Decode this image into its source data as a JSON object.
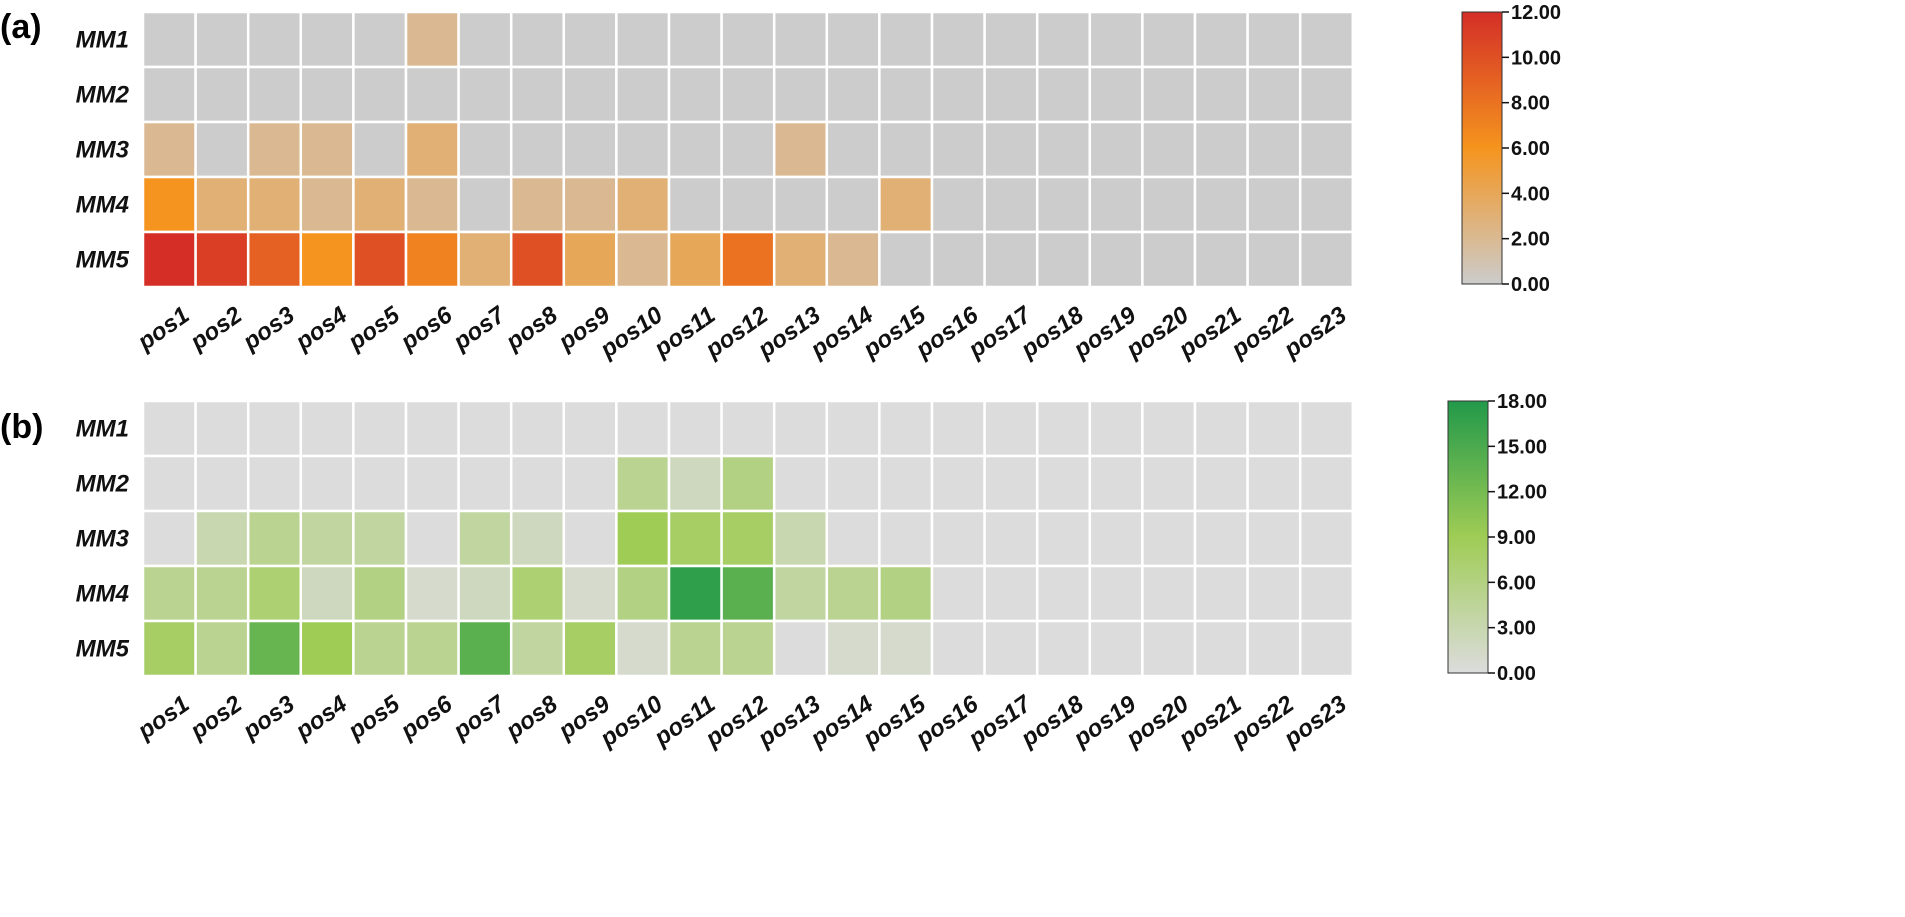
{
  "chart_data": [
    {
      "type": "heatmap",
      "panel_label": "(a)",
      "rows": [
        "MM1",
        "MM2",
        "MM3",
        "MM4",
        "MM5"
      ],
      "columns": [
        "pos1",
        "pos2",
        "pos3",
        "pos4",
        "pos5",
        "pos6",
        "pos7",
        "pos8",
        "pos9",
        "pos10",
        "pos11",
        "pos12",
        "pos13",
        "pos14",
        "pos15",
        "pos16",
        "pos17",
        "pos18",
        "pos19",
        "pos20",
        "pos21",
        "pos22",
        "pos23"
      ],
      "values": [
        [
          0,
          0,
          0,
          0,
          0,
          2,
          0,
          0,
          0,
          0,
          0,
          0,
          0,
          0,
          0,
          0,
          0,
          0,
          0,
          0,
          0,
          0,
          0
        ],
        [
          0,
          0,
          0,
          0,
          0,
          0,
          0,
          0,
          0,
          0,
          0,
          0,
          0,
          0,
          0,
          0,
          0,
          0,
          0,
          0,
          0,
          0,
          0
        ],
        [
          2,
          0,
          2,
          2,
          0,
          3,
          0,
          0,
          0,
          0,
          0,
          0,
          2,
          0,
          0,
          0,
          0,
          0,
          0,
          0,
          0,
          0,
          0
        ],
        [
          6,
          3,
          3,
          2,
          3,
          2,
          0,
          2,
          2,
          3,
          0,
          0,
          0,
          0,
          3,
          0,
          0,
          0,
          0,
          0,
          0,
          0,
          0
        ],
        [
          12,
          11,
          9,
          6,
          10,
          7,
          3,
          10,
          4,
          2,
          4,
          8,
          3,
          2,
          0,
          0,
          0,
          0,
          0,
          0,
          0,
          0,
          0
        ]
      ],
      "colorbar": {
        "min": 0,
        "max": 12,
        "ticks": [
          "0.00",
          "2.00",
          "4.00",
          "6.00",
          "8.00",
          "10.00",
          "12.00"
        ],
        "colors": [
          "#cccccc",
          "#f5941e",
          "#d42e27"
        ]
      }
    },
    {
      "type": "heatmap",
      "panel_label": "(b)",
      "rows": [
        "MM1",
        "MM2",
        "MM3",
        "MM4",
        "MM5"
      ],
      "columns": [
        "pos1",
        "pos2",
        "pos3",
        "pos4",
        "pos5",
        "pos6",
        "pos7",
        "pos8",
        "pos9",
        "pos10",
        "pos11",
        "pos12",
        "pos13",
        "pos14",
        "pos15",
        "pos16",
        "pos17",
        "pos18",
        "pos19",
        "pos20",
        "pos21",
        "pos22",
        "pos23"
      ],
      "values": [
        [
          0,
          0,
          0,
          0,
          0,
          0,
          0,
          0,
          0,
          0,
          0,
          0,
          0,
          0,
          0,
          0,
          0,
          0,
          0,
          0,
          0,
          0,
          0
        ],
        [
          0,
          0,
          0,
          0,
          0,
          0,
          0,
          0,
          0,
          5,
          2,
          6,
          0,
          0,
          0,
          0,
          0,
          0,
          0,
          0,
          0,
          0,
          0
        ],
        [
          0,
          3,
          5,
          4,
          4,
          0,
          4,
          2,
          0,
          9,
          8,
          8,
          3,
          0,
          0,
          0,
          0,
          0,
          0,
          0,
          0,
          0,
          0
        ],
        [
          5,
          5,
          7,
          2,
          6,
          1,
          2,
          7,
          1,
          6,
          17,
          14,
          4,
          5,
          6,
          0,
          0,
          0,
          0,
          0,
          0,
          0,
          0
        ],
        [
          8,
          5,
          13,
          9,
          5,
          5,
          14,
          4,
          8,
          1,
          5,
          5,
          0,
          1,
          1,
          0,
          0,
          0,
          0,
          0,
          0,
          0,
          0
        ]
      ],
      "colorbar": {
        "min": 0,
        "max": 18,
        "ticks": [
          "0.00",
          "3.00",
          "6.00",
          "9.00",
          "12.00",
          "15.00",
          "18.00"
        ],
        "colors": [
          "#dcdcdc",
          "#9fcc55",
          "#22994a"
        ]
      }
    }
  ]
}
